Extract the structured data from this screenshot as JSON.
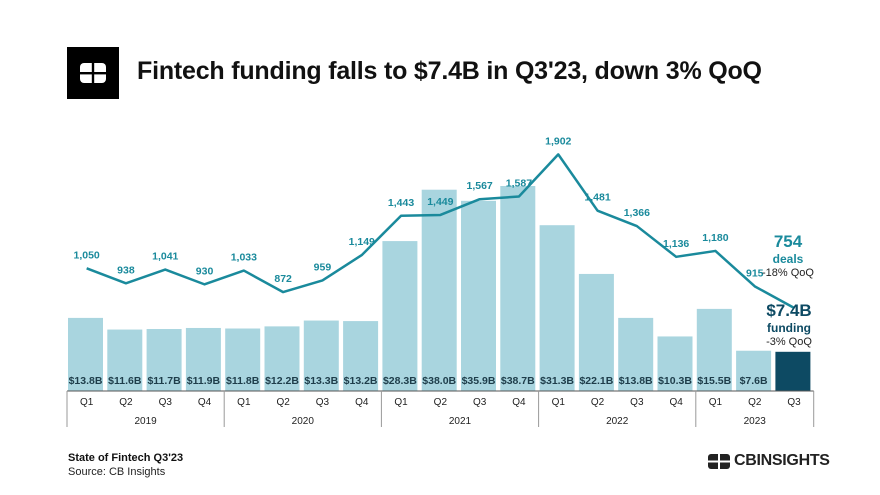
{
  "header": {
    "title": "Fintech funding falls to $7.4B in Q3'23, down 3% QoQ"
  },
  "footer": {
    "report": "State of Fintech Q3'23",
    "source": "Source: CB Insights",
    "brand": "CBINSIGHTS"
  },
  "summary": {
    "deals_value": "754",
    "deals_label": "deals",
    "deals_change": "-18% QoQ",
    "funding_value": "$7.4B",
    "funding_label": "funding",
    "funding_change": "-3% QoQ"
  },
  "chart_data": {
    "type": "bar",
    "title": "Fintech funding falls to $7.4B in Q3'23, down 3% QoQ",
    "categories": [
      "Q1",
      "Q2",
      "Q3",
      "Q4",
      "Q1",
      "Q2",
      "Q3",
      "Q4",
      "Q1",
      "Q2",
      "Q3",
      "Q4",
      "Q1",
      "Q2",
      "Q3",
      "Q4",
      "Q1",
      "Q2",
      "Q3"
    ],
    "years": [
      {
        "label": "2019",
        "count": 4
      },
      {
        "label": "2020",
        "count": 4
      },
      {
        "label": "2021",
        "count": 4
      },
      {
        "label": "2022",
        "count": 4
      },
      {
        "label": "2023",
        "count": 3
      }
    ],
    "series": [
      {
        "type": "bar",
        "unit": "$B",
        "values": [
          13.8,
          11.6,
          11.7,
          11.9,
          11.8,
          12.2,
          13.3,
          13.2,
          28.3,
          38.0,
          35.9,
          38.7,
          31.3,
          22.1,
          13.8,
          10.3,
          15.5,
          7.6,
          7.4
        ],
        "labels": [
          "$13.8B",
          "$11.6B",
          "$11.7B",
          "$11.9B",
          "$11.8B",
          "$12.2B",
          "$13.3B",
          "$13.2B",
          "$28.3B",
          "$38.0B",
          "$35.9B",
          "$38.7B",
          "$31.3B",
          "$22.1B",
          "$13.8B",
          "$10.3B",
          "$15.5B",
          "$7.6B",
          ""
        ]
      },
      {
        "type": "line",
        "values": [
          1050,
          938,
          1041,
          930,
          1033,
          872,
          959,
          1149,
          1443,
          1449,
          1567,
          1587,
          1902,
          1481,
          1366,
          1136,
          1180,
          915,
          754
        ],
        "labels": [
          "1,050",
          "938",
          "1,041",
          "930",
          "1,033",
          "872",
          "959",
          "1,149",
          "1,443",
          "1,449",
          "1,567",
          "1,587",
          "1,902",
          "1,481",
          "1,366",
          "1,136",
          "1,180",
          "915",
          ""
        ]
      }
    ],
    "colors": {
      "bar": "#a9d5df",
      "bar_highlight": "#0d4a63",
      "line": "#1a8a9c",
      "deals_text": "#1a8a9c",
      "funding_text": "#0d4a63"
    },
    "legend": "none",
    "grid": false
  }
}
